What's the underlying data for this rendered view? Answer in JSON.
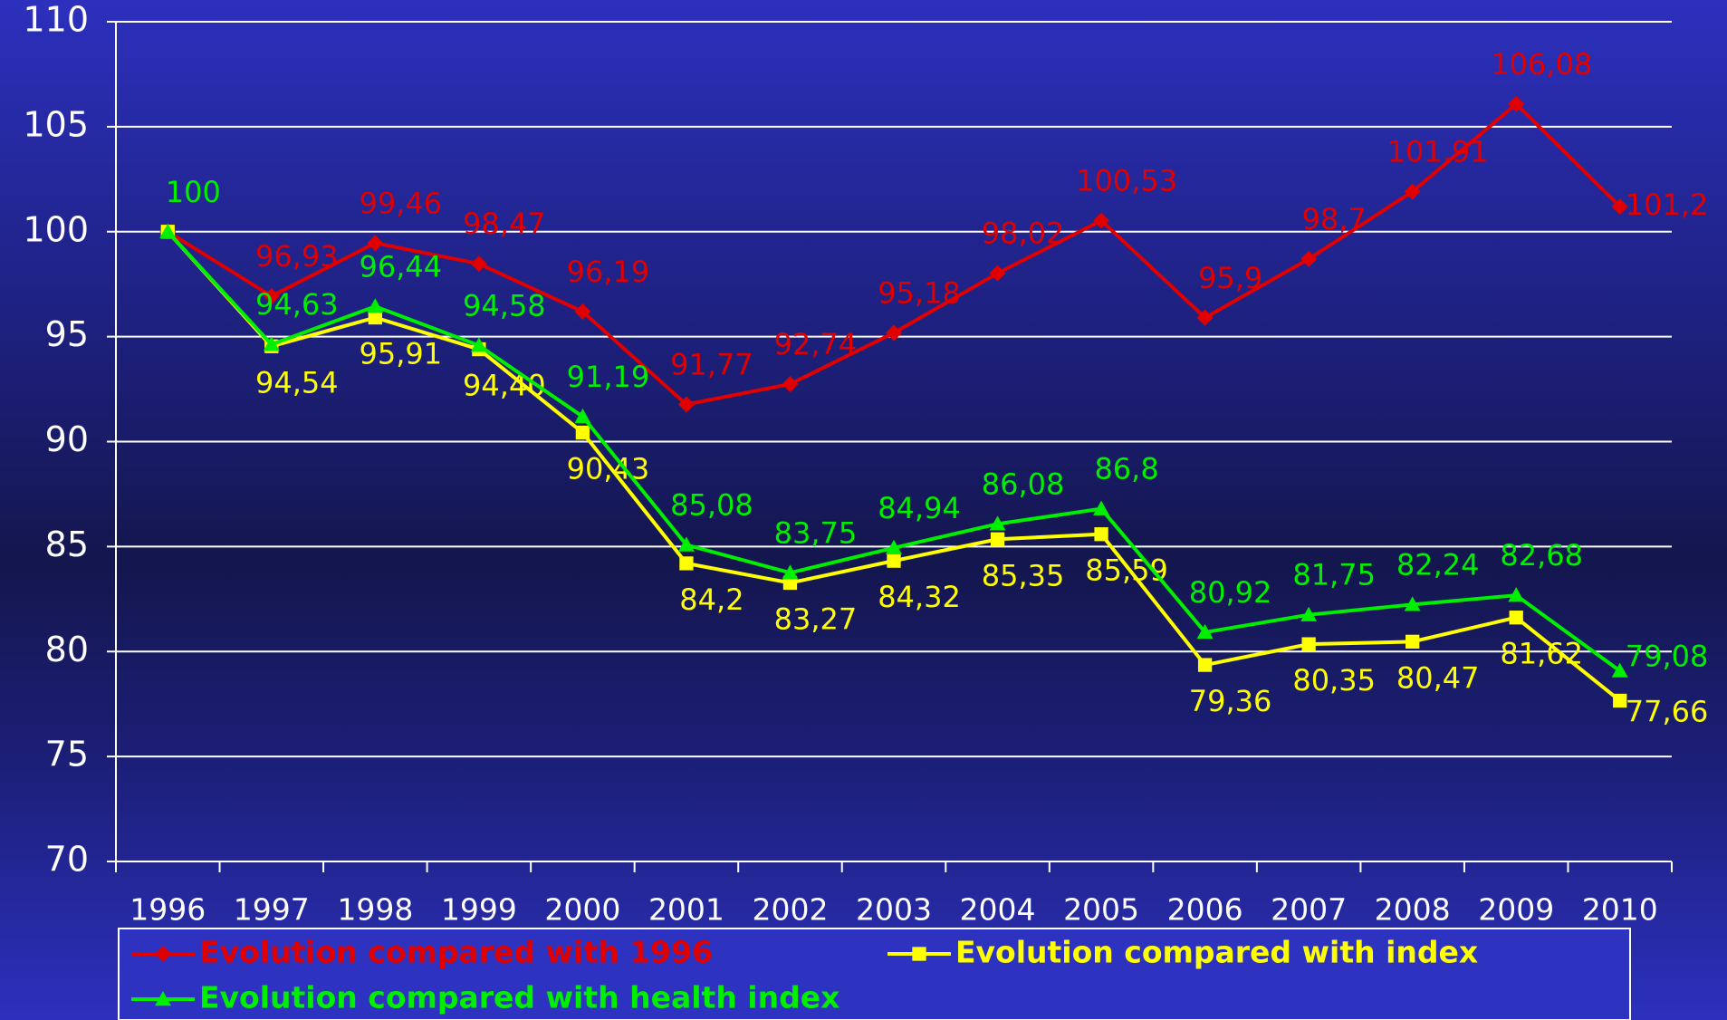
{
  "chart_data": {
    "type": "line",
    "categories": [
      "1996",
      "1997",
      "1998",
      "1999",
      "2000",
      "2001",
      "2002",
      "2003",
      "2004",
      "2005",
      "2006",
      "2007",
      "2008",
      "2009",
      "2010"
    ],
    "ylim": [
      70,
      110
    ],
    "yticks": [
      70,
      75,
      80,
      85,
      90,
      95,
      100,
      105,
      110
    ],
    "grid": true,
    "series": [
      {
        "name": "Evolution compared with 1996",
        "color": "#e00000",
        "marker": "diamond",
        "values": [
          100,
          96.93,
          99.46,
          98.47,
          96.19,
          91.77,
          92.74,
          95.18,
          98.02,
          100.53,
          95.9,
          98.7,
          101.91,
          106.08,
          101.2
        ],
        "value_labels": [
          null,
          "96,93",
          "99,46",
          "98,47",
          "96,19",
          "91,77",
          "92,74",
          "95,18",
          "98,02",
          "100,53",
          "95,9",
          "98,7",
          "101,91",
          "106,08",
          "101,2"
        ]
      },
      {
        "name": "Evolution compared with index",
        "color": "#ffff00",
        "marker": "square",
        "values": [
          100,
          94.54,
          95.91,
          94.4,
          90.43,
          84.2,
          83.27,
          84.32,
          85.35,
          85.59,
          79.36,
          80.35,
          80.47,
          81.62,
          77.66
        ],
        "value_labels": [
          null,
          "94,54",
          "95,91",
          "94,40",
          "90,43",
          "84,2",
          "83,27",
          "84,32",
          "85,35",
          "85,59",
          "79,36",
          "80,35",
          "80,47",
          "81,62",
          "77,66"
        ]
      },
      {
        "name": "Evolution compared with health index",
        "color": "#00ee00",
        "marker": "triangle",
        "values": [
          100,
          94.63,
          96.44,
          94.58,
          91.19,
          85.08,
          83.75,
          84.94,
          86.08,
          86.8,
          80.92,
          81.75,
          82.24,
          82.68,
          79.08
        ],
        "value_labels": [
          "100",
          "94,63",
          "96,44",
          "94,58",
          "91,19",
          "85,08",
          "83,75",
          "84,94",
          "86,08",
          "86,8",
          "80,92",
          "81,75",
          "82,24",
          "82,68",
          "79,08"
        ]
      }
    ]
  }
}
